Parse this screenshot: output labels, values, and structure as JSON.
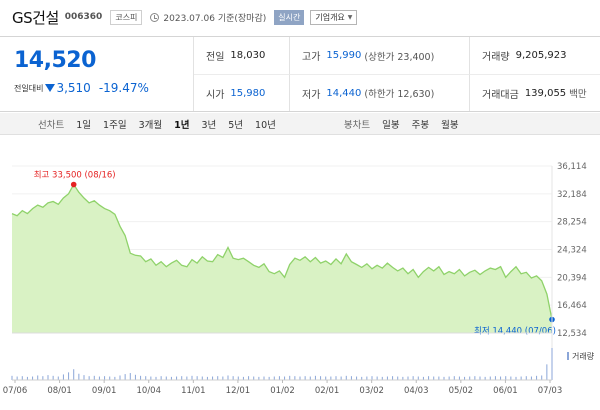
{
  "header": {
    "company": "GS건설",
    "code": "006360",
    "market": "코스피",
    "date": "2023.07.06 기준(장마감)",
    "realtime_label": "실시간",
    "company_info_label": "기업개요"
  },
  "quote": {
    "price": "14,520",
    "change_label": "전일대비",
    "change": "3,510",
    "change_rate": "-19.47%",
    "prev_close_label": "전일",
    "prev_close": "18,030",
    "open_label": "시가",
    "open": "15,980",
    "high_label": "고가",
    "high": "15,990",
    "upper_limit": "(상한가 23,400)",
    "low_label": "저가",
    "low": "14,440",
    "lower_limit": "(하한가 12,630)",
    "volume_label": "거래량",
    "volume": "9,205,923",
    "value_label": "거래대금",
    "value": "139,055",
    "value_unit": "백만"
  },
  "tabs": {
    "line_label": "선차트",
    "line_items": [
      "1일",
      "1주일",
      "3개월",
      "1년",
      "3년",
      "5년",
      "10년"
    ],
    "active_line": "1년",
    "candle_label": "봉차트",
    "candle_items": [
      "일봉",
      "주봉",
      "월봉"
    ]
  },
  "colors": {
    "accent_blue": "#0b63d1",
    "area_fill": "#d9f2c4",
    "line": "#8fd26a",
    "volume": "#8ba6d8",
    "high_red": "#e52222"
  },
  "chart_data": {
    "type": "area",
    "title": "",
    "xlabel": "",
    "ylabel": "",
    "ylim": [
      12534,
      36114
    ],
    "yticks": [
      "36,114",
      "32,184",
      "28,254",
      "24,324",
      "20,394",
      "16,464",
      "12,534"
    ],
    "xticks": [
      "07/06",
      "08/01",
      "09/01",
      "10/04",
      "11/01",
      "12/01",
      "01/02",
      "02/01",
      "03/02",
      "04/03",
      "05/02",
      "06/01",
      "07/03"
    ],
    "high_annotation": "최고 33,500 (08/16)",
    "low_annotation": "최저 14,440 (07/06)",
    "volume_label": "거래량",
    "x": [
      "07/06",
      "07/10",
      "07/13",
      "07/17",
      "07/20",
      "07/24",
      "07/27",
      "07/31",
      "08/03",
      "08/07",
      "08/10",
      "08/14",
      "08/16",
      "08/18",
      "08/21",
      "08/24",
      "08/28",
      "08/31",
      "09/01",
      "09/05",
      "09/08",
      "09/12",
      "09/15",
      "09/19",
      "09/22",
      "09/26",
      "09/29",
      "10/04",
      "10/07",
      "10/11",
      "10/14",
      "10/18",
      "10/21",
      "10/25",
      "10/28",
      "11/01",
      "11/04",
      "11/08",
      "11/11",
      "11/15",
      "11/18",
      "11/22",
      "11/25",
      "11/29",
      "12/01",
      "12/05",
      "12/08",
      "12/12",
      "12/15",
      "12/19",
      "12/22",
      "12/27",
      "12/30",
      "01/02",
      "01/05",
      "01/09",
      "01/12",
      "01/16",
      "01/19",
      "01/26",
      "01/30",
      "02/01",
      "02/06",
      "02/09",
      "02/13",
      "02/16",
      "02/20",
      "02/23",
      "02/27",
      "03/02",
      "03/06",
      "03/09",
      "03/13",
      "03/16",
      "03/20",
      "03/23",
      "03/27",
      "03/30",
      "04/03",
      "04/06",
      "04/10",
      "04/13",
      "04/17",
      "04/20",
      "04/24",
      "04/27",
      "05/02",
      "05/05",
      "05/09",
      "05/12",
      "05/16",
      "05/19",
      "05/23",
      "05/26",
      "06/01",
      "06/05",
      "06/08",
      "06/12",
      "06/15",
      "06/19",
      "06/22",
      "06/26",
      "06/29",
      "07/03",
      "07/05",
      "07/06"
    ],
    "values": [
      29400,
      29100,
      29800,
      29400,
      30100,
      30600,
      30300,
      30900,
      31100,
      30700,
      31600,
      32200,
      33500,
      32400,
      31600,
      30900,
      31200,
      30600,
      30100,
      29800,
      29300,
      27600,
      26300,
      23800,
      23500,
      23400,
      22600,
      23000,
      22100,
      22600,
      21900,
      22400,
      22800,
      22100,
      21900,
      22900,
      22400,
      23300,
      22700,
      22600,
      23600,
      23200,
      24600,
      23100,
      22900,
      23100,
      22600,
      22100,
      21800,
      22300,
      21200,
      20900,
      21300,
      20400,
      22200,
      23100,
      22800,
      23300,
      22600,
      23200,
      22400,
      22700,
      22200,
      23000,
      22300,
      23700,
      22600,
      22200,
      21800,
      22300,
      21600,
      22100,
      21700,
      22400,
      21800,
      21300,
      21700,
      20900,
      21500,
      20400,
      21200,
      21800,
      21300,
      21900,
      20800,
      21200,
      20900,
      21500,
      20600,
      21100,
      21400,
      20800,
      21300,
      21700,
      21500,
      21900,
      20400,
      21200,
      21900,
      20900,
      21100,
      20300,
      20600,
      19900,
      18030,
      14440
    ],
    "volume": [
      1.2,
      1.0,
      1.1,
      0.9,
      1.0,
      1.3,
      1.1,
      1.4,
      1.2,
      1.0,
      1.6,
      2.2,
      3.1,
      1.8,
      1.4,
      1.1,
      1.2,
      1.0,
      1.1,
      1.0,
      0.9,
      1.3,
      1.7,
      2.0,
      1.5,
      1.2,
      1.1,
      1.0,
      0.9,
      1.1,
      1.0,
      0.9,
      1.0,
      1.1,
      1.0,
      1.2,
      1.1,
      1.0,
      0.9,
      1.0,
      1.1,
      1.0,
      1.3,
      1.1,
      1.0,
      0.9,
      1.1,
      1.0,
      0.9,
      1.0,
      0.9,
      1.0,
      1.1,
      1.0,
      1.2,
      1.1,
      1.0,
      1.1,
      1.0,
      1.2,
      1.1,
      1.0,
      1.0,
      1.1,
      1.0,
      1.2,
      1.1,
      1.0,
      0.9,
      1.0,
      1.1,
      1.0,
      0.9,
      1.0,
      1.1,
      1.0,
      0.9,
      1.0,
      1.1,
      1.0,
      0.9,
      1.1,
      1.0,
      1.0,
      0.9,
      1.0,
      1.1,
      1.0,
      0.9,
      1.0,
      1.1,
      1.0,
      0.9,
      1.0,
      1.1,
      1.0,
      1.1,
      1.0,
      0.9,
      1.0,
      1.1,
      1.0,
      1.2,
      1.3,
      4.5,
      9.2
    ]
  }
}
